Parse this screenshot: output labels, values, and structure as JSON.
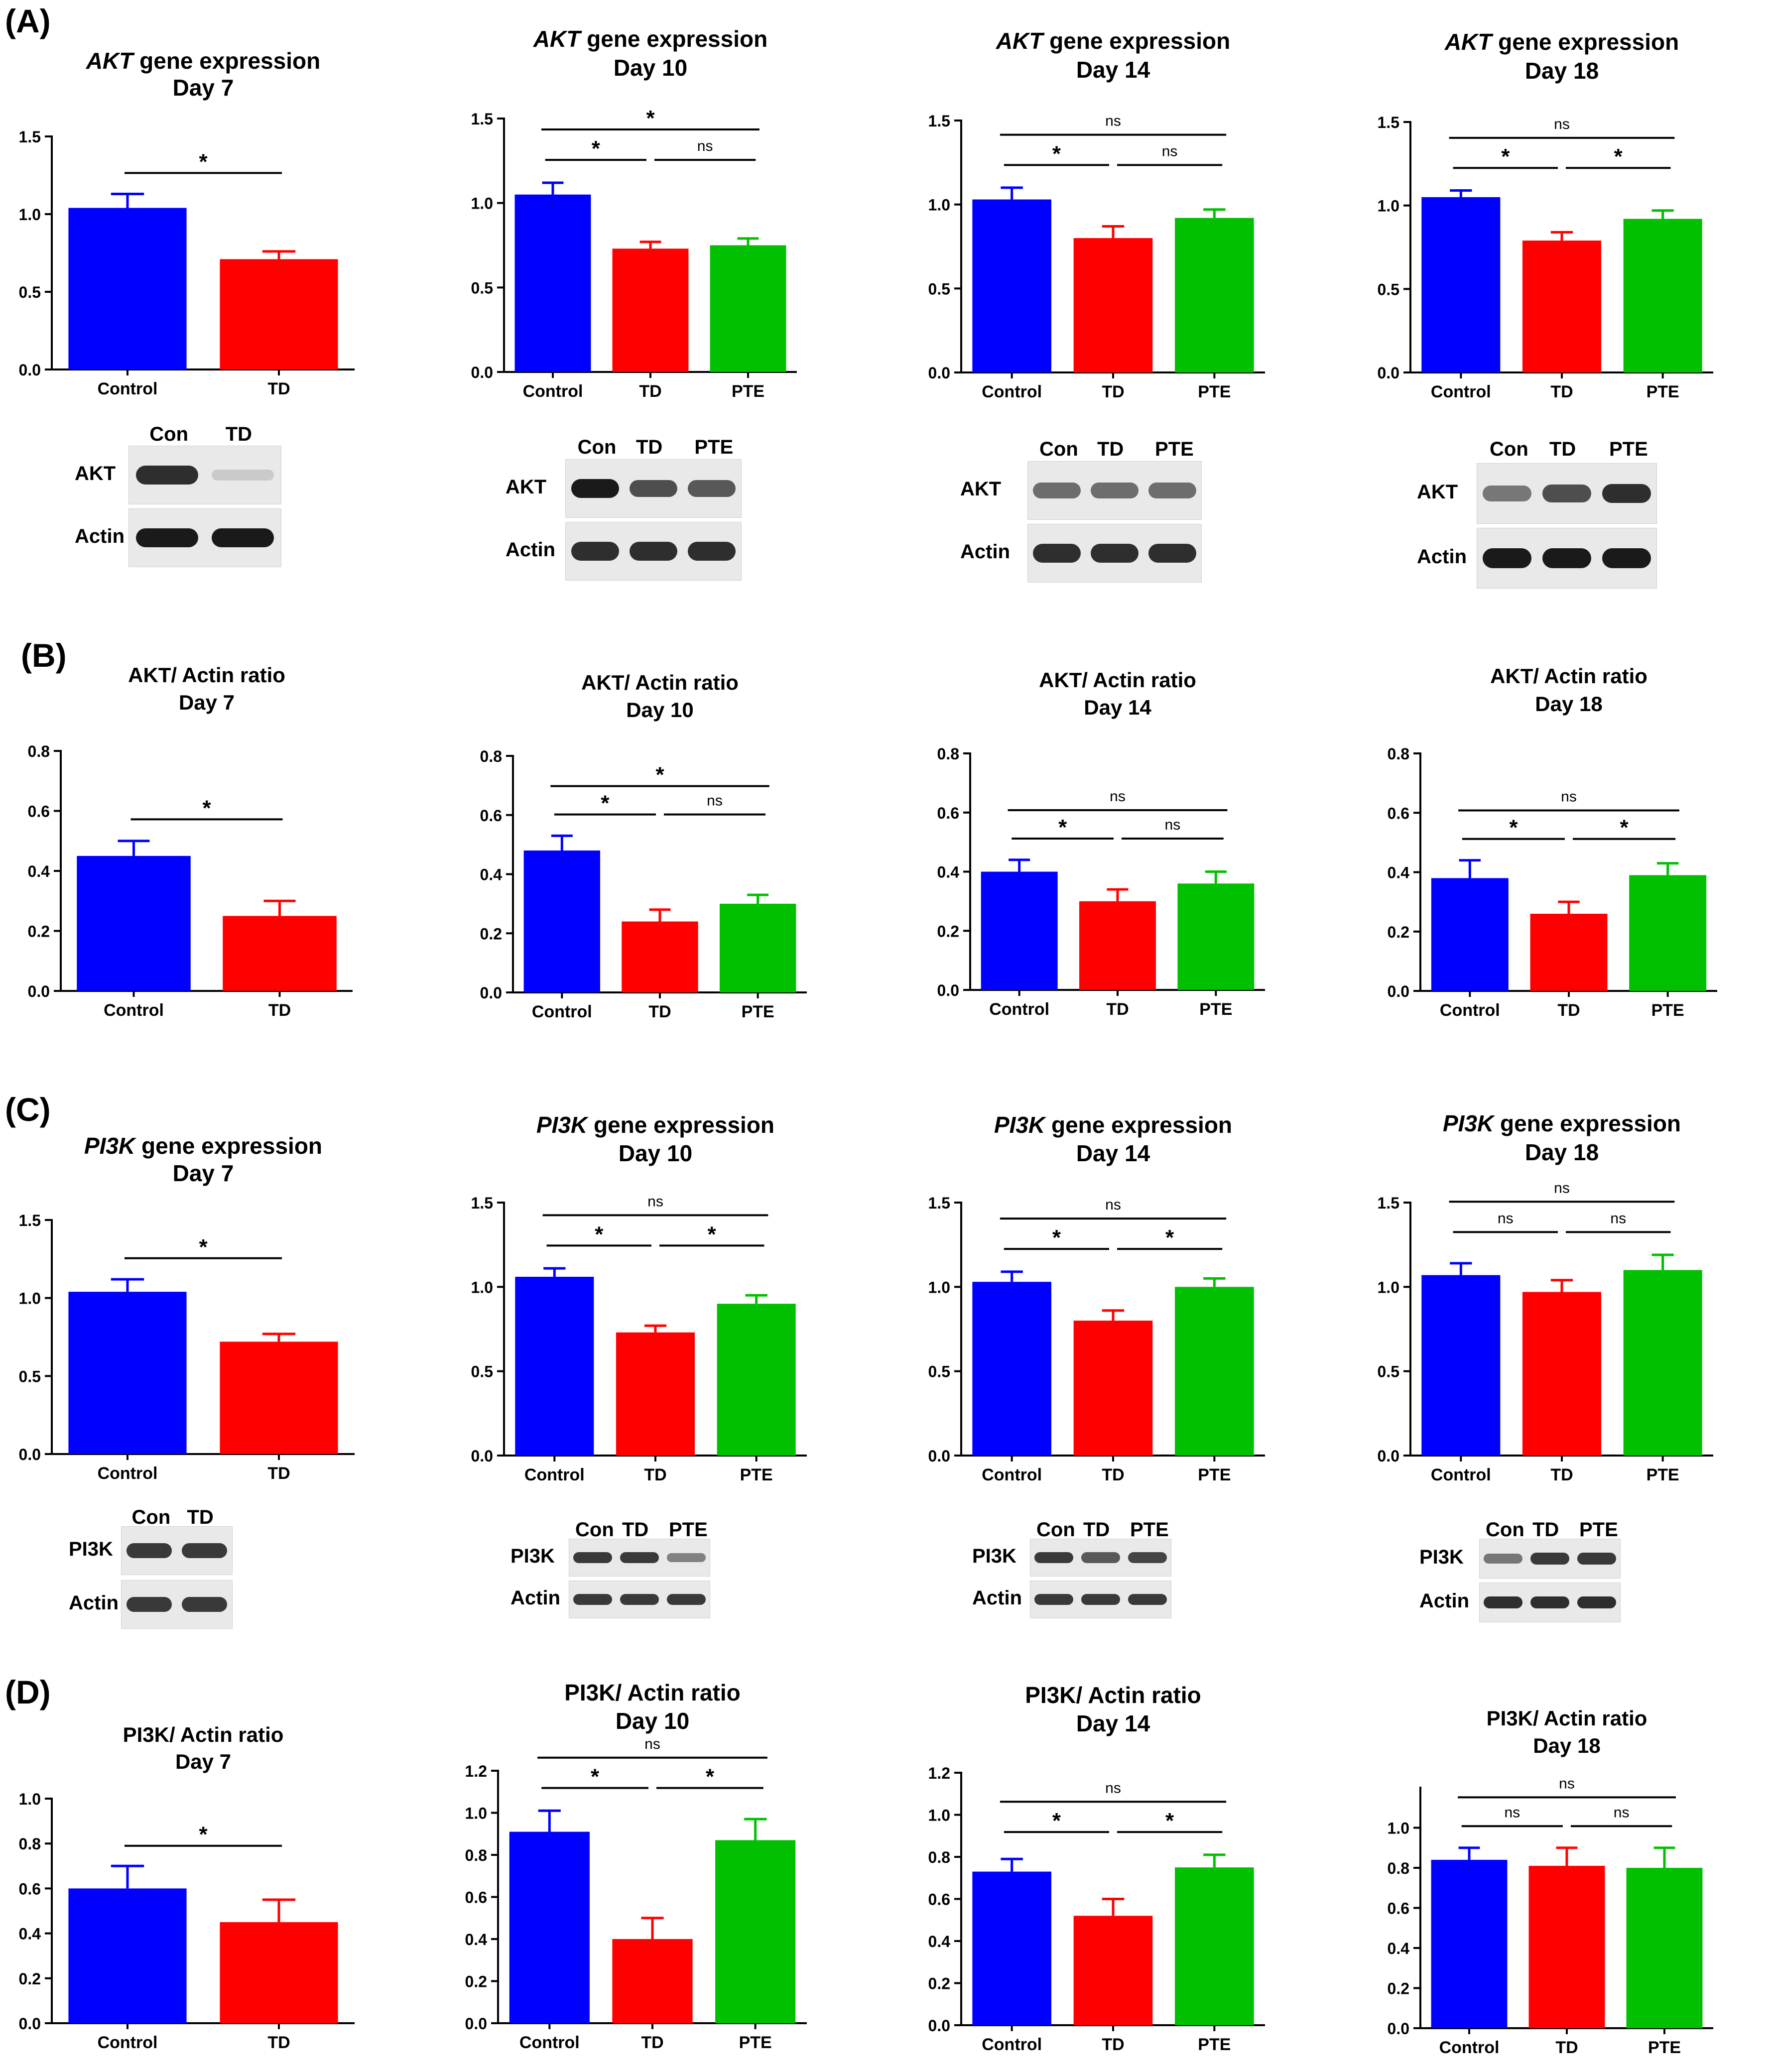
{
  "panel_letters": [
    "(A)",
    "(B)",
    "(C)",
    "(D)"
  ],
  "colors": {
    "Control": "#0000ff",
    "TD": "#ff0000",
    "PTE": "#00c000",
    "error_bars": "matching bar color"
  },
  "chart_data": [
    {
      "type": "bar",
      "panel": "A",
      "title_italic": "AKT",
      "title_rest": " gene expression",
      "subtitle": "Day 7",
      "categories": [
        "Control",
        "TD"
      ],
      "values": [
        1.04,
        0.71
      ],
      "errors": [
        0.09,
        0.05
      ],
      "ylim": [
        0,
        1.5
      ],
      "yticks": [
        "0.0",
        "0.5",
        "1.0",
        "1.5"
      ],
      "annotations": [
        {
          "from": 0,
          "to": 1,
          "text": "*"
        }
      ]
    },
    {
      "type": "bar",
      "panel": "A",
      "title_italic": "AKT",
      "title_rest": " gene expression",
      "subtitle": "Day 10",
      "categories": [
        "Control",
        "TD",
        "PTE"
      ],
      "values": [
        1.05,
        0.73,
        0.75
      ],
      "errors": [
        0.07,
        0.04,
        0.04
      ],
      "ylim": [
        0,
        1.5
      ],
      "yticks": [
        "0.0",
        "0.5",
        "1.0",
        "1.5"
      ],
      "annotations": [
        {
          "from": 0,
          "to": 2,
          "text": "*"
        },
        {
          "from": 0,
          "to": 1,
          "text": "*"
        },
        {
          "from": 1,
          "to": 2,
          "text": "ns"
        }
      ]
    },
    {
      "type": "bar",
      "panel": "A",
      "title_italic": "AKT",
      "title_rest": " gene expression",
      "subtitle": "Day 14",
      "categories": [
        "Control",
        "TD",
        "PTE"
      ],
      "values": [
        1.03,
        0.8,
        0.92
      ],
      "errors": [
        0.07,
        0.07,
        0.05
      ],
      "ylim": [
        0,
        1.5
      ],
      "yticks": [
        "0.0",
        "0.5",
        "1.0",
        "1.5"
      ],
      "annotations": [
        {
          "from": 0,
          "to": 2,
          "text": "ns"
        },
        {
          "from": 0,
          "to": 1,
          "text": "*"
        },
        {
          "from": 1,
          "to": 2,
          "text": "ns"
        }
      ]
    },
    {
      "type": "bar",
      "panel": "A",
      "title_italic": "AKT",
      "title_rest": " gene expression",
      "subtitle": "Day 18",
      "categories": [
        "Control",
        "TD",
        "PTE"
      ],
      "values": [
        1.05,
        0.79,
        0.92
      ],
      "errors": [
        0.04,
        0.05,
        0.05
      ],
      "ylim": [
        0,
        1.5
      ],
      "yticks": [
        "0.0",
        "0.5",
        "1.0",
        "1.5"
      ],
      "annotations": [
        {
          "from": 0,
          "to": 2,
          "text": "ns"
        },
        {
          "from": 0,
          "to": 1,
          "text": "*"
        },
        {
          "from": 1,
          "to": 2,
          "text": "*"
        }
      ]
    },
    {
      "type": "bar",
      "panel": "B",
      "title_italic": "",
      "title_rest": "AKT/ Actin ratio",
      "subtitle": "Day 7",
      "categories": [
        "Control",
        "TD"
      ],
      "values": [
        0.45,
        0.25
      ],
      "errors": [
        0.05,
        0.05
      ],
      "ylim": [
        0,
        0.8
      ],
      "yticks": [
        "0.0",
        "0.2",
        "0.4",
        "0.6",
        "0.8"
      ],
      "annotations": [
        {
          "from": 0,
          "to": 1,
          "text": "*"
        }
      ]
    },
    {
      "type": "bar",
      "panel": "B",
      "title_italic": "",
      "title_rest": "AKT/ Actin ratio",
      "subtitle": "Day 10",
      "categories": [
        "Control",
        "TD",
        "PTE"
      ],
      "values": [
        0.48,
        0.24,
        0.3
      ],
      "errors": [
        0.05,
        0.04,
        0.03
      ],
      "ylim": [
        0,
        0.8
      ],
      "yticks": [
        "0.0",
        "0.2",
        "0.4",
        "0.6",
        "0.8"
      ],
      "annotations": [
        {
          "from": 0,
          "to": 2,
          "text": "*"
        },
        {
          "from": 0,
          "to": 1,
          "text": "*"
        },
        {
          "from": 1,
          "to": 2,
          "text": "ns"
        }
      ]
    },
    {
      "type": "bar",
      "panel": "B",
      "title_italic": "",
      "title_rest": "AKT/ Actin ratio",
      "subtitle": "Day 14",
      "categories": [
        "Control",
        "TD",
        "PTE"
      ],
      "values": [
        0.4,
        0.3,
        0.36
      ],
      "errors": [
        0.04,
        0.04,
        0.04
      ],
      "ylim": [
        0,
        0.8
      ],
      "yticks": [
        "0.0",
        "0.2",
        "0.4",
        "0.6",
        "0.8"
      ],
      "annotations": [
        {
          "from": 0,
          "to": 2,
          "text": "ns"
        },
        {
          "from": 0,
          "to": 1,
          "text": "*"
        },
        {
          "from": 1,
          "to": 2,
          "text": "ns"
        }
      ]
    },
    {
      "type": "bar",
      "panel": "B",
      "title_italic": "",
      "title_rest": "AKT/ Actin ratio",
      "subtitle": "Day 18",
      "categories": [
        "Control",
        "TD",
        "PTE"
      ],
      "values": [
        0.38,
        0.26,
        0.39
      ],
      "errors": [
        0.06,
        0.04,
        0.04
      ],
      "ylim": [
        0,
        0.8
      ],
      "yticks": [
        "0.0",
        "0.2",
        "0.4",
        "0.6",
        "0.8"
      ],
      "annotations": [
        {
          "from": 0,
          "to": 2,
          "text": "ns"
        },
        {
          "from": 0,
          "to": 1,
          "text": "*"
        },
        {
          "from": 1,
          "to": 2,
          "text": "*"
        }
      ]
    },
    {
      "type": "bar",
      "panel": "C",
      "title_italic": "PI3K",
      "title_rest": " gene expression",
      "subtitle": "Day 7",
      "categories": [
        "Control",
        "TD"
      ],
      "values": [
        1.04,
        0.72
      ],
      "errors": [
        0.08,
        0.05
      ],
      "ylim": [
        0,
        1.5
      ],
      "yticks": [
        "0.0",
        "0.5",
        "1.0",
        "1.5"
      ],
      "annotations": [
        {
          "from": 0,
          "to": 1,
          "text": "*"
        }
      ]
    },
    {
      "type": "bar",
      "panel": "C",
      "title_italic": "PI3K",
      "title_rest": " gene expression",
      "subtitle": "Day 10",
      "categories": [
        "Control",
        "TD",
        "PTE"
      ],
      "values": [
        1.06,
        0.73,
        0.9
      ],
      "errors": [
        0.05,
        0.04,
        0.05
      ],
      "ylim": [
        0,
        1.5
      ],
      "yticks": [
        "0.0",
        "0.5",
        "1.0",
        "1.5"
      ],
      "annotations": [
        {
          "from": 0,
          "to": 2,
          "text": "ns"
        },
        {
          "from": 0,
          "to": 1,
          "text": "*"
        },
        {
          "from": 1,
          "to": 2,
          "text": "*"
        }
      ]
    },
    {
      "type": "bar",
      "panel": "C",
      "title_italic": "PI3K",
      "title_rest": " gene expression",
      "subtitle": "Day 14",
      "categories": [
        "Control",
        "TD",
        "PTE"
      ],
      "values": [
        1.03,
        0.8,
        1.0
      ],
      "errors": [
        0.06,
        0.06,
        0.05
      ],
      "ylim": [
        0,
        1.5
      ],
      "yticks": [
        "0.0",
        "0.5",
        "1.0",
        "1.5"
      ],
      "annotations": [
        {
          "from": 0,
          "to": 2,
          "text": "ns"
        },
        {
          "from": 0,
          "to": 1,
          "text": "*"
        },
        {
          "from": 1,
          "to": 2,
          "text": "*"
        }
      ]
    },
    {
      "type": "bar",
      "panel": "C",
      "title_italic": "PI3K",
      "title_rest": " gene expression",
      "subtitle": "Day 18",
      "categories": [
        "Control",
        "TD",
        "PTE"
      ],
      "values": [
        1.07,
        0.97,
        1.1
      ],
      "errors": [
        0.07,
        0.07,
        0.09
      ],
      "ylim": [
        0,
        1.5
      ],
      "yticks": [
        "0.0",
        "0.5",
        "1.0",
        "1.5"
      ],
      "annotations": [
        {
          "from": 0,
          "to": 2,
          "text": "ns"
        },
        {
          "from": 0,
          "to": 1,
          "text": "ns"
        },
        {
          "from": 1,
          "to": 2,
          "text": "ns"
        }
      ]
    },
    {
      "type": "bar",
      "panel": "D",
      "title_italic": "",
      "title_rest": "PI3K/ Actin ratio",
      "subtitle": "Day 7",
      "categories": [
        "Control",
        "TD"
      ],
      "values": [
        0.6,
        0.45
      ],
      "errors": [
        0.1,
        0.1
      ],
      "ylim": [
        0,
        1.0
      ],
      "yticks": [
        "0.0",
        "0.2",
        "0.4",
        "0.6",
        "0.8",
        "1.0"
      ],
      "annotations": [
        {
          "from": 0,
          "to": 1,
          "text": "*"
        }
      ]
    },
    {
      "type": "bar",
      "panel": "D",
      "title_italic": "",
      "title_rest": "PI3K/ Actin ratio",
      "subtitle": "Day 10",
      "categories": [
        "Control",
        "TD",
        "PTE"
      ],
      "values": [
        0.91,
        0.4,
        0.87
      ],
      "errors": [
        0.1,
        0.1,
        0.1
      ],
      "ylim": [
        0,
        1.2
      ],
      "yticks": [
        "0.0",
        "0.2",
        "0.4",
        "0.6",
        "0.8",
        "1.0",
        "1.2"
      ],
      "annotations": [
        {
          "from": 0,
          "to": 2,
          "text": "ns"
        },
        {
          "from": 0,
          "to": 1,
          "text": "*"
        },
        {
          "from": 1,
          "to": 2,
          "text": "*"
        }
      ]
    },
    {
      "type": "bar",
      "panel": "D",
      "title_italic": "",
      "title_rest": "PI3K/ Actin ratio",
      "subtitle": "Day 14",
      "categories": [
        "Control",
        "TD",
        "PTE"
      ],
      "values": [
        0.73,
        0.52,
        0.75
      ],
      "errors": [
        0.06,
        0.08,
        0.06
      ],
      "ylim": [
        0,
        1.2
      ],
      "yticks": [
        "0.0",
        "0.2",
        "0.4",
        "0.6",
        "0.8",
        "1.0",
        "1.2"
      ],
      "annotations": [
        {
          "from": 0,
          "to": 2,
          "text": "ns"
        },
        {
          "from": 0,
          "to": 1,
          "text": "*"
        },
        {
          "from": 1,
          "to": 2,
          "text": "*"
        }
      ]
    },
    {
      "type": "bar",
      "panel": "D",
      "title_italic": "",
      "title_rest": "PI3K/ Actin ratio",
      "subtitle": "Day 18",
      "categories": [
        "Control",
        "TD",
        "PTE"
      ],
      "values": [
        0.84,
        0.81,
        0.8
      ],
      "errors": [
        0.06,
        0.09,
        0.1
      ],
      "ylim": [
        0,
        1.2
      ],
      "yticks": [
        "0.0",
        "0.2",
        "0.4",
        "0.6",
        "0.8",
        "1.0"
      ],
      "annotations": [
        {
          "from": 0,
          "to": 2,
          "text": "ns"
        },
        {
          "from": 0,
          "to": 1,
          "text": "ns"
        },
        {
          "from": 1,
          "to": 2,
          "text": "ns"
        }
      ]
    }
  ],
  "blots": [
    {
      "lanes": [
        "Con",
        "TD"
      ],
      "rows": [
        {
          "label": "AKT",
          "intensity": [
            0.9,
            0.15
          ]
        },
        {
          "label": "Actin",
          "intensity": [
            1.0,
            1.0
          ]
        }
      ]
    },
    {
      "lanes": [
        "Con",
        "TD",
        "PTE"
      ],
      "rows": [
        {
          "label": "AKT",
          "intensity": [
            1.0,
            0.75,
            0.7
          ]
        },
        {
          "label": "Actin",
          "intensity": [
            0.9,
            0.9,
            0.9
          ]
        }
      ]
    },
    {
      "lanes": [
        "Con",
        "TD",
        "PTE"
      ],
      "rows": [
        {
          "label": "AKT",
          "intensity": [
            0.6,
            0.6,
            0.6
          ]
        },
        {
          "label": "Actin",
          "intensity": [
            0.9,
            0.9,
            0.9
          ]
        }
      ]
    },
    {
      "lanes": [
        "Con",
        "TD",
        "PTE"
      ],
      "rows": [
        {
          "label": "AKT",
          "intensity": [
            0.55,
            0.75,
            0.9
          ]
        },
        {
          "label": "Actin",
          "intensity": [
            1.0,
            1.0,
            1.0
          ]
        }
      ]
    },
    {
      "lanes": [
        "Con",
        "TD"
      ],
      "rows": [
        {
          "label": "PI3K",
          "intensity": [
            0.85,
            0.85
          ]
        },
        {
          "label": "Actin",
          "intensity": [
            0.85,
            0.85
          ]
        }
      ]
    },
    {
      "lanes": [
        "Con",
        "TD",
        "PTE"
      ],
      "rows": [
        {
          "label": "PI3K",
          "intensity": [
            0.85,
            0.85,
            0.5
          ]
        },
        {
          "label": "Actin",
          "intensity": [
            0.85,
            0.85,
            0.85
          ]
        }
      ]
    },
    {
      "lanes": [
        "Con",
        "TD",
        "PTE"
      ],
      "rows": [
        {
          "label": "PI3K",
          "intensity": [
            0.85,
            0.7,
            0.8
          ]
        },
        {
          "label": "Actin",
          "intensity": [
            0.85,
            0.85,
            0.85
          ]
        }
      ]
    },
    {
      "lanes": [
        "Con",
        "TD",
        "PTE"
      ],
      "rows": [
        {
          "label": "PI3K",
          "intensity": [
            0.55,
            0.85,
            0.85
          ]
        },
        {
          "label": "Actin",
          "intensity": [
            0.9,
            0.9,
            0.9
          ]
        }
      ]
    }
  ]
}
